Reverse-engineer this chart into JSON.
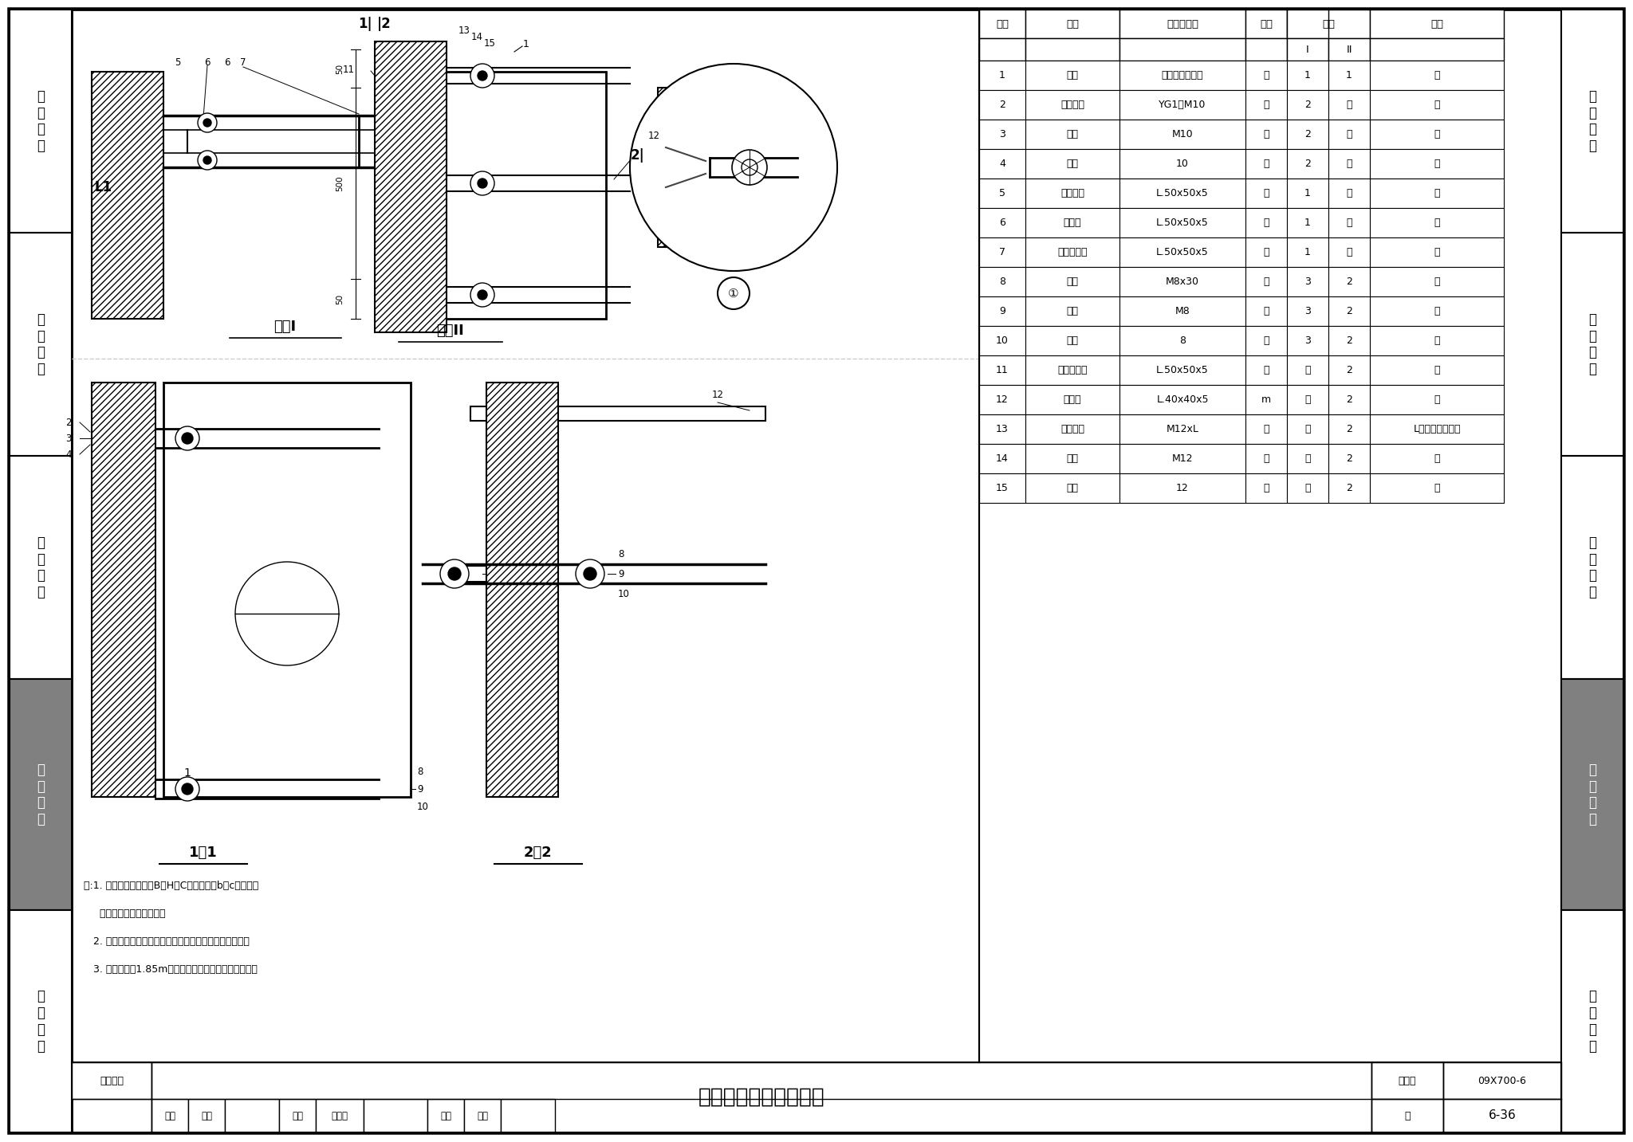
{
  "bg_color": "#ffffff",
  "sidebar_labels": [
    "机\n房\n工\n程",
    "供\n电\n电\n源",
    "缆\n线\n敷\n设",
    "设\n备\n安\n装",
    "防\n雷\n接\n地"
  ],
  "active_idx": 3,
  "active_bg": "#808080",
  "table_col_widths": [
    58,
    118,
    158,
    52,
    52,
    52,
    168
  ],
  "table_header1": [
    "编号",
    "名称",
    "型号及规格",
    "单位",
    "数量",
    "数量",
    "备注"
  ],
  "table_header2": [
    "",
    "",
    "",
    "",
    "I",
    "II",
    ""
  ],
  "table_data": [
    [
      "1",
      "机柜",
      "由工程设计确定",
      "个",
      "1",
      "1",
      "－"
    ],
    [
      "2",
      "膨胀螺栓",
      "YG1－M10",
      "个",
      "2",
      "－",
      "－"
    ],
    [
      "3",
      "螺母",
      "M10",
      "个",
      "2",
      "－",
      "－"
    ],
    [
      "4",
      "垫圈",
      "10",
      "个",
      "2",
      "－",
      "－"
    ],
    [
      "5",
      "横把角钢",
      "L.50x50x5",
      "块",
      "1",
      "－",
      "－"
    ],
    [
      "6",
      "侧撑铁",
      "L.50x50x5",
      "块",
      "1",
      "－",
      "－"
    ],
    [
      "7",
      "加固小角钢",
      "L.50x50x5",
      "块",
      "1",
      "－",
      "－"
    ],
    [
      "8",
      "螺栓",
      "M8x30",
      "个",
      "3",
      "2",
      "－"
    ],
    [
      "9",
      "螺母",
      "M8",
      "个",
      "3",
      "2",
      "－"
    ],
    [
      "10",
      "垫圈",
      "8",
      "个",
      "3",
      "2",
      "－"
    ],
    [
      "11",
      "加固小角钢",
      "L.50x50x5",
      "块",
      "－",
      "2",
      "－"
    ],
    [
      "12",
      "连固铁",
      "L.40x40x5",
      "m",
      "－",
      "2",
      "－"
    ],
    [
      "13",
      "双头螺栓",
      "M12xL",
      "个",
      "－",
      "2",
      "L长度视墙厚而定"
    ],
    [
      "14",
      "螺母",
      "M12",
      "个",
      "－",
      "2",
      "－"
    ],
    [
      "15",
      "垫圈",
      "12",
      "个",
      "－",
      "2",
      "－"
    ]
  ],
  "notes": [
    "注:1. 设备机柜外形尺寸B、H、C，安装尺寸b、c，机柜平",
    "     面布置由工程设计确定。",
    "   2. 固定机柜的零部件可根据机柜的大小由工程设计确定。",
    "   3. 凡高度超过1.85m要求防震的设备可参考此图施工。"
  ],
  "fang_an_1": "方案I",
  "fang_an_2": "方案II",
  "section_11": "1－1",
  "section_22": "2－2",
  "title_main": "设备机柜侧拉加固安装",
  "dept": "设备安装",
  "atlas_label": "图集号",
  "atlas_no": "09X700-6",
  "page_label": "页",
  "page_no": "6-36",
  "review_label": "审核",
  "reviewer": "张宜",
  "check_label": "校对",
  "checker": "李雪佩",
  "design_label": "设计",
  "designer": "孙兰"
}
